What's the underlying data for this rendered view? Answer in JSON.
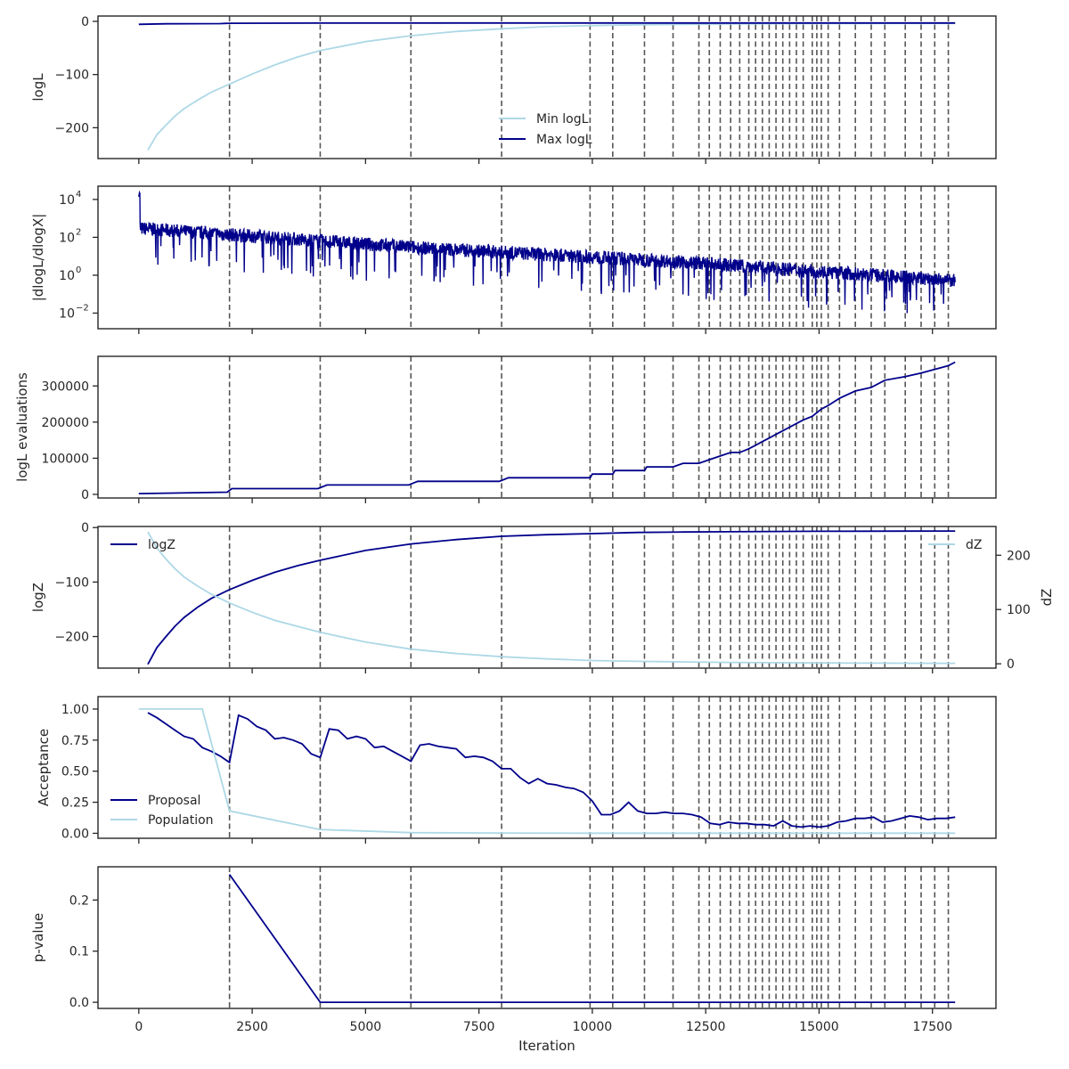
{
  "figure": {
    "xlabel": "Iteration",
    "x_ticks": [
      0,
      2500,
      5000,
      7500,
      10000,
      12500,
      15000,
      17500
    ],
    "x_tick_labels": [
      "0",
      "2500",
      "5000",
      "7500",
      "10000",
      "12500",
      "15000",
      "17500"
    ],
    "xlim": [
      -900,
      18900
    ],
    "vlines": [
      2000,
      4000,
      6000,
      8000,
      9950,
      10450,
      11150,
      11780,
      12350,
      12580,
      12820,
      13050,
      13250,
      13450,
      13600,
      13750,
      13900,
      14050,
      14200,
      14350,
      14500,
      14650,
      14850,
      14950,
      15050,
      15200,
      15450,
      15800,
      16150,
      16450,
      16900,
      17250,
      17550,
      17850
    ],
    "colors": {
      "dark": "#00008b",
      "light": "#add8e6",
      "vline": "#555555",
      "frame": "#262626"
    }
  },
  "chart_data": [
    {
      "type": "line",
      "ylabel": "logL",
      "ylim": [
        -258,
        10
      ],
      "y_ticks": [
        0,
        -100,
        -200
      ],
      "y_tick_labels": [
        "0",
        "−100",
        "−200"
      ],
      "legend": "lower-center",
      "series": [
        {
          "name": "Min logL",
          "color": "light",
          "x": [
            200,
            400,
            600,
            800,
            1000,
            1300,
            1600,
            2000,
            2500,
            3000,
            3500,
            4000,
            5000,
            6000,
            7000,
            8000,
            9000,
            10000,
            11000,
            12000,
            13000,
            14000,
            15000,
            16000,
            17000,
            18000
          ],
          "y": [
            -242,
            -213,
            -195,
            -178,
            -164,
            -148,
            -133,
            -118,
            -99,
            -82,
            -67,
            -55,
            -38,
            -27,
            -19,
            -14,
            -10,
            -8,
            -6.5,
            -5.5,
            -4.8,
            -4.4,
            -4.1,
            -3.9,
            -3.8,
            -3.7
          ]
        },
        {
          "name": "Max logL",
          "color": "dark",
          "x": [
            0,
            600,
            1800,
            2000,
            4000,
            8000,
            18000
          ],
          "y": [
            -5.5,
            -4.5,
            -4.3,
            -3.5,
            -3.2,
            -3.1,
            -3.0
          ]
        }
      ]
    },
    {
      "type": "line",
      "ylabel": "|dlogL/dlogX|",
      "scale": "log",
      "ylim": [
        0.0015,
        50000
      ],
      "y_ticks": [
        0.01,
        1,
        100,
        10000
      ],
      "y_tick_labels": [
        "10",
        "10",
        "10",
        "10"
      ],
      "y_tick_exponents": [
        "−2",
        "0",
        "2",
        "4"
      ],
      "series": [
        {
          "name": "",
          "color": "dark",
          "x_range": [
            0,
            18000
          ],
          "trend": [
            [
              0,
              300
            ],
            [
              6000,
              30
            ],
            [
              12000,
              5
            ],
            [
              18000,
              0.5
            ]
          ],
          "spread_high": 4.5,
          "spread_low": 0.06
        }
      ]
    },
    {
      "type": "line",
      "ylabel": "logL evaluations",
      "ylim": [
        -10000,
        382000
      ],
      "y_ticks": [
        0,
        100000,
        200000,
        300000
      ],
      "y_tick_labels": [
        "0",
        "100000",
        "200000",
        "300000"
      ],
      "series": [
        {
          "name": "",
          "color": "dark",
          "x": [
            0,
            1950,
            2050,
            3950,
            4150,
            5950,
            6150,
            7950,
            8150,
            9950,
            10000,
            10450,
            10500,
            11150,
            11200,
            11780,
            12000,
            12350,
            12580,
            12820,
            13050,
            13250,
            13450,
            13600,
            13750,
            13900,
            14050,
            14200,
            14350,
            14500,
            14650,
            14850,
            15050,
            15200,
            15450,
            15800,
            16150,
            16450,
            16900,
            17250,
            17550,
            17850,
            18000
          ],
          "y": [
            2000,
            6000,
            16000,
            16000,
            26000,
            26000,
            36000,
            36000,
            46000,
            46000,
            56000,
            56000,
            66000,
            66000,
            76000,
            76000,
            86000,
            86000,
            96000,
            106000,
            116000,
            116000,
            126000,
            136000,
            146000,
            156000,
            166000,
            176000,
            186000,
            196000,
            206000,
            216000,
            236000,
            246000,
            266000,
            286000,
            296000,
            316000,
            326000,
            336000,
            346000,
            356000,
            366000
          ]
        }
      ]
    },
    {
      "type": "line",
      "ylabel": "logZ",
      "ylim": [
        -258,
        2
      ],
      "y_ticks": [
        0,
        -100,
        -200
      ],
      "y_tick_labels": [
        "0",
        "−100",
        "−200"
      ],
      "y2label": "dZ",
      "y2lim": [
        -8,
        253
      ],
      "y2_ticks": [
        0,
        100,
        200
      ],
      "y2_tick_labels": [
        "0",
        "100",
        "200"
      ],
      "legend": "top-left (logZ), top-right (dZ)",
      "series": [
        {
          "name": "logZ",
          "color": "dark",
          "axis": "left",
          "x": [
            200,
            400,
            600,
            800,
            1000,
            1300,
            1600,
            2000,
            2500,
            3000,
            3500,
            4000,
            5000,
            6000,
            7000,
            8000,
            9000,
            10000,
            11000,
            12000,
            13000,
            14000,
            15000,
            16000,
            17000,
            18000
          ],
          "y": [
            -251,
            -220,
            -200,
            -181,
            -165,
            -146,
            -130,
            -114,
            -97,
            -82,
            -70,
            -60,
            -42,
            -30,
            -22,
            -16,
            -13,
            -11,
            -9,
            -8.2,
            -7.6,
            -7.2,
            -6.9,
            -6.7,
            -6.5,
            -6.4
          ]
        },
        {
          "name": "dZ",
          "color": "light",
          "axis": "right",
          "x": [
            200,
            400,
            600,
            800,
            1000,
            1300,
            1600,
            2000,
            2500,
            3000,
            3500,
            4000,
            5000,
            6000,
            7000,
            8000,
            9000,
            10000,
            11000,
            12000,
            13000,
            14000,
            15000,
            16000,
            17000,
            18000
          ],
          "y": [
            243,
            213,
            193,
            175,
            160,
            143,
            128,
            112,
            95,
            80,
            69,
            58,
            40,
            27,
            19,
            13,
            9,
            6,
            4.5,
            3.5,
            2.5,
            2,
            1.5,
            1.2,
            1,
            0.8
          ]
        }
      ]
    },
    {
      "type": "line",
      "ylabel": "Acceptance",
      "ylim": [
        -0.04,
        1.1
      ],
      "y_ticks": [
        0,
        0.25,
        0.5,
        0.75,
        1.0
      ],
      "y_tick_labels": [
        "0.00",
        "0.25",
        "0.50",
        "0.75",
        "1.00"
      ],
      "legend": "lower-left",
      "series": [
        {
          "name": "Proposal",
          "color": "dark",
          "x": [
            200,
            400,
            600,
            800,
            1000,
            1200,
            1400,
            1600,
            1800,
            2000,
            2200,
            2400,
            2600,
            2800,
            3000,
            3200,
            3400,
            3600,
            3800,
            4000,
            4200,
            4400,
            4600,
            4800,
            5000,
            5200,
            5400,
            5600,
            5800,
            6000,
            6200,
            6400,
            6600,
            6800,
            7000,
            7200,
            7400,
            7600,
            7800,
            8000,
            8200,
            8400,
            8600,
            8800,
            9000,
            9200,
            9400,
            9600,
            9800,
            10000,
            10200,
            10400,
            10600,
            10800,
            11000,
            11200,
            11400,
            11600,
            11800,
            12000,
            12200,
            12400,
            12600,
            12800,
            13000,
            13200,
            13400,
            13600,
            13800,
            14000,
            14200,
            14400,
            14600,
            14800,
            15000,
            15200,
            15400,
            15600,
            15800,
            16000,
            16200,
            16400,
            16600,
            16800,
            17000,
            17200,
            17400,
            17600,
            17800,
            18000
          ],
          "y": [
            0.97,
            0.93,
            0.88,
            0.83,
            0.78,
            0.76,
            0.69,
            0.66,
            0.62,
            0.57,
            0.95,
            0.92,
            0.86,
            0.83,
            0.76,
            0.77,
            0.75,
            0.72,
            0.64,
            0.61,
            0.84,
            0.83,
            0.76,
            0.78,
            0.76,
            0.69,
            0.7,
            0.66,
            0.62,
            0.58,
            0.71,
            0.72,
            0.7,
            0.69,
            0.68,
            0.61,
            0.62,
            0.61,
            0.58,
            0.52,
            0.52,
            0.45,
            0.4,
            0.44,
            0.4,
            0.39,
            0.37,
            0.36,
            0.33,
            0.26,
            0.15,
            0.15,
            0.18,
            0.25,
            0.18,
            0.16,
            0.16,
            0.17,
            0.16,
            0.16,
            0.15,
            0.13,
            0.08,
            0.07,
            0.09,
            0.08,
            0.08,
            0.07,
            0.07,
            0.06,
            0.1,
            0.06,
            0.05,
            0.06,
            0.05,
            0.06,
            0.09,
            0.1,
            0.12,
            0.12,
            0.13,
            0.09,
            0.1,
            0.12,
            0.14,
            0.13,
            0.11,
            0.12,
            0.12,
            0.13
          ]
        },
        {
          "name": "Population",
          "color": "light",
          "x": [
            0,
            1400,
            2000,
            4000,
            6000,
            8000,
            10000,
            12000,
            14000,
            16000,
            18000
          ],
          "y": [
            1.0,
            1.0,
            0.18,
            0.03,
            0.005,
            0.002,
            0.001,
            0.001,
            0.001,
            0.001,
            0.001
          ]
        }
      ]
    },
    {
      "type": "line",
      "ylabel": "p-value",
      "ylim": [
        -0.012,
        0.265
      ],
      "y_ticks": [
        0,
        0.1,
        0.2
      ],
      "y_tick_labels": [
        "0.0",
        "0.1",
        "0.2"
      ],
      "series": [
        {
          "name": "",
          "color": "dark",
          "x": [
            2000,
            4000,
            6000,
            8000,
            10000,
            12000,
            14000,
            16000,
            18000
          ],
          "y": [
            0.25,
            0.0,
            0.0,
            0.0,
            0.0,
            0.0,
            0.0,
            0.0,
            0.0
          ]
        }
      ]
    }
  ]
}
